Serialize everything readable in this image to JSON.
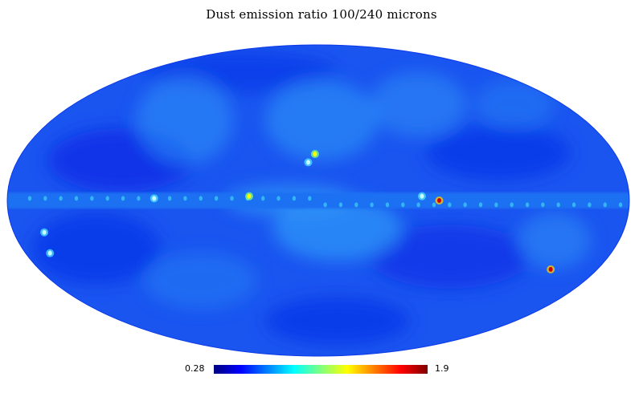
{
  "title": "Dust emission ratio 100/240 microns",
  "projection": "mollweide",
  "colormap": {
    "name": "jet",
    "min_label": "0.28",
    "max_label": "1.9",
    "stops": [
      "#00007f",
      "#0000ff",
      "#007fff",
      "#00ffff",
      "#7fff7f",
      "#ffff00",
      "#ff7f00",
      "#ff0000",
      "#7f0000"
    ]
  },
  "map_colors": {
    "background": "#1a55f0",
    "dark_region": "#0a2ce6",
    "bright_region": "#2f95f7",
    "galactic_plane": "#1f6ff2",
    "outline": "#0c3ae8"
  },
  "hotspots": [
    {
      "lon_deg": 2,
      "lat_deg": 22,
      "level": "yellow"
    },
    {
      "lon_deg": 6,
      "lat_deg": 18,
      "level": "cyan"
    },
    {
      "lon_deg": -70,
      "lat_deg": 0,
      "level": "red"
    },
    {
      "lon_deg": -150,
      "lat_deg": -33,
      "level": "red"
    },
    {
      "lon_deg": 40,
      "lat_deg": 2,
      "level": "yellow"
    },
    {
      "lon_deg": 95,
      "lat_deg": 1,
      "level": "cyan"
    },
    {
      "lon_deg": 162,
      "lat_deg": -15,
      "level": "cyan"
    },
    {
      "lon_deg": 165,
      "lat_deg": -25,
      "level": "cyan"
    },
    {
      "lon_deg": -60,
      "lat_deg": 2,
      "level": "cyan"
    }
  ]
}
